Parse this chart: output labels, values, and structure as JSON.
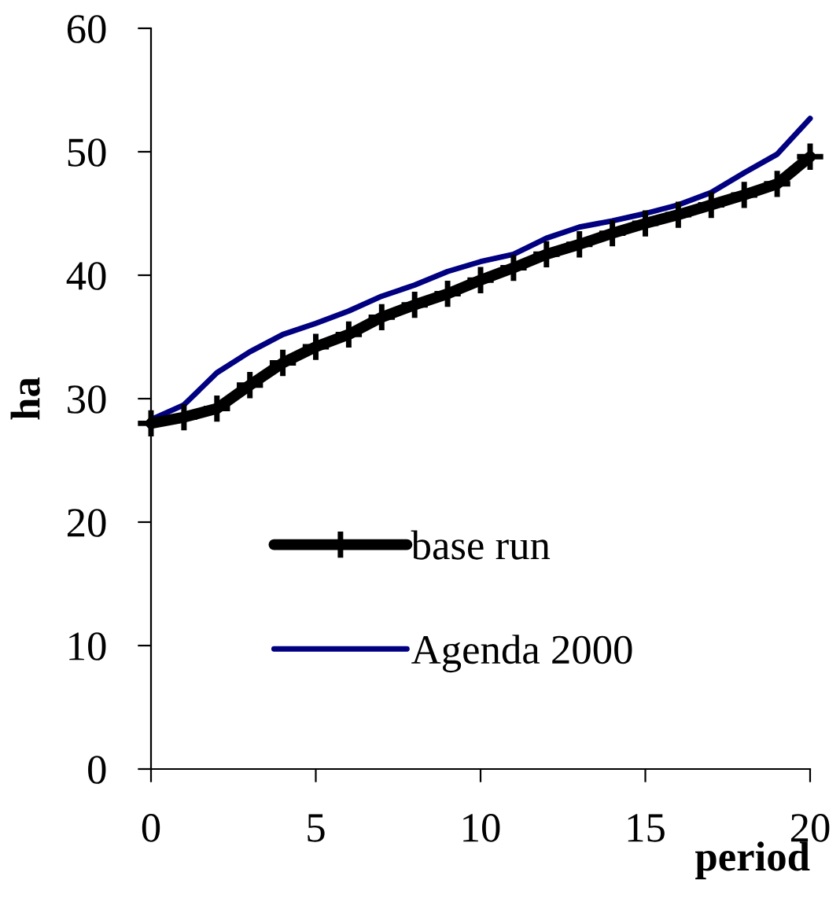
{
  "chart_data": {
    "type": "line",
    "xlabel": "period",
    "ylabel": "ha",
    "x": [
      0,
      1,
      2,
      3,
      4,
      5,
      6,
      7,
      8,
      9,
      10,
      11,
      12,
      13,
      14,
      15,
      16,
      17,
      18,
      19,
      20
    ],
    "series": [
      {
        "name": "base run",
        "color": "#000000",
        "marker": "cross",
        "values": [
          28.0,
          28.5,
          29.2,
          31.1,
          32.9,
          34.2,
          35.2,
          36.6,
          37.6,
          38.5,
          39.6,
          40.6,
          41.7,
          42.5,
          43.4,
          44.2,
          44.9,
          45.7,
          46.5,
          47.4,
          49.6
        ]
      },
      {
        "name": "Agenda 2000",
        "color": "#000080",
        "marker": "none",
        "values": [
          28.3,
          29.5,
          32.1,
          33.8,
          35.2,
          36.1,
          37.1,
          38.3,
          39.2,
          40.3,
          41.1,
          41.7,
          43.0,
          43.9,
          44.4,
          45.0,
          45.7,
          46.7,
          48.3,
          49.8,
          52.7
        ]
      }
    ],
    "xlim": [
      0,
      20
    ],
    "ylim": [
      0,
      60
    ],
    "xticks": [
      0,
      5,
      10,
      15,
      20
    ],
    "yticks": [
      0,
      10,
      20,
      30,
      40,
      50,
      60
    ],
    "grid": false,
    "legend": "lower left",
    "line_style": "solid"
  }
}
